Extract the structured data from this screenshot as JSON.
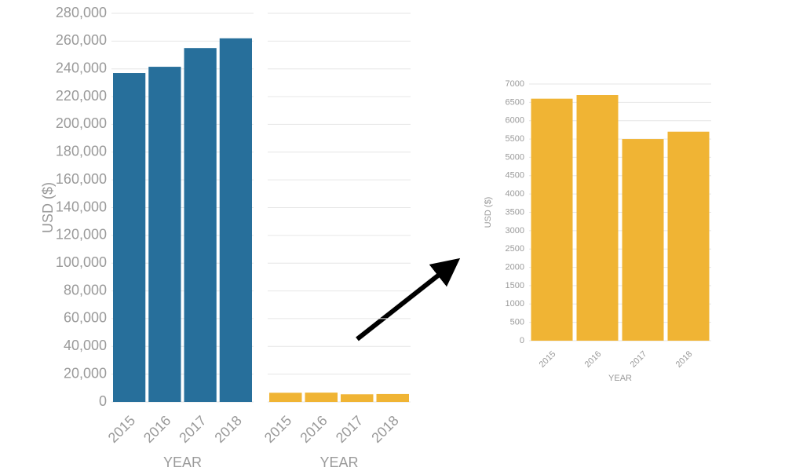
{
  "chart_data": [
    {
      "type": "bar",
      "categories": [
        "2015",
        "2016",
        "2017",
        "2018"
      ],
      "values": [
        237000,
        241500,
        255000,
        262000
      ],
      "color": "#276f9b",
      "xlabel": "YEAR",
      "ylabel": "USD ($)",
      "ylim": [
        0,
        280000
      ],
      "yticks": [
        0,
        {
          "value": 20000,
          "label": "20,000"
        },
        {
          "value": 40000,
          "label": "40,000"
        },
        {
          "value": 60000,
          "label": "60,000"
        },
        {
          "value": 80000,
          "label": "80,000"
        },
        {
          "value": 100000,
          "label": "100,000"
        },
        {
          "value": 120000,
          "label": "120,000"
        },
        {
          "value": 140000,
          "label": "140,000"
        },
        {
          "value": 160000,
          "label": "160,000"
        },
        {
          "value": 180000,
          "label": "180,000"
        },
        {
          "value": 200000,
          "label": "200,000"
        },
        {
          "value": 220000,
          "label": "220,000"
        },
        {
          "value": 240000,
          "label": "240,000"
        },
        {
          "value": 260000,
          "label": "260,000"
        },
        {
          "value": 280000,
          "label": "280,000"
        }
      ],
      "grid": true,
      "ytick_labels": true
    },
    {
      "type": "bar",
      "categories": [
        "2015",
        "2016",
        "2017",
        "2018"
      ],
      "values": [
        6600,
        6700,
        5500,
        5700
      ],
      "color": "#f0b434",
      "xlabel": "YEAR",
      "ylim": [
        0,
        280000
      ],
      "yticks": [
        0,
        20000,
        40000,
        60000,
        80000,
        100000,
        120000,
        140000,
        160000,
        180000,
        200000,
        220000,
        240000,
        260000,
        280000
      ],
      "grid": true,
      "ytick_labels": false
    },
    {
      "type": "bar",
      "categories": [
        "2015",
        "2016",
        "2017",
        "2018"
      ],
      "values": [
        6600,
        6700,
        5500,
        5700
      ],
      "color": "#f0b434",
      "xlabel": "YEAR",
      "ylabel": "USD ($)",
      "ylim": [
        0,
        7000
      ],
      "yticks": [
        0,
        500,
        1000,
        1500,
        2000,
        2500,
        3000,
        3500,
        4000,
        4500,
        5000,
        5500,
        6000,
        6500,
        7000
      ],
      "grid": true,
      "ytick_labels": true
    }
  ]
}
